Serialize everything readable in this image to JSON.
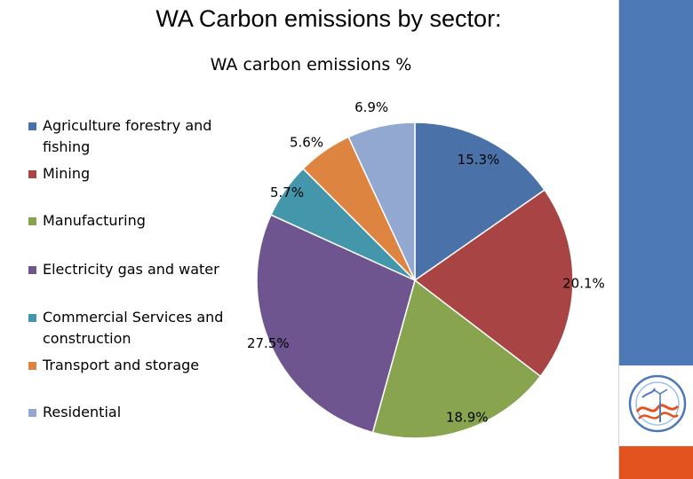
{
  "slide": {
    "title": "WA Carbon emissions by sector:"
  },
  "icons": {
    "logo": "wind-wave-logo-icon"
  },
  "chart_data": {
    "type": "pie",
    "title": "WA carbon emissions %",
    "start_angle_deg": 0,
    "direction": "clockwise",
    "legend_position": "left",
    "categories": [
      "Agriculture forestry and fishing",
      "Mining",
      "Manufacturing",
      "Electricity gas and water",
      "Commercial Services and construction",
      "Transport and storage",
      "Residential"
    ],
    "values": [
      15.3,
      20.1,
      18.9,
      27.5,
      5.7,
      5.6,
      6.9
    ],
    "labels": [
      "15.3%",
      "20.1%",
      "18.9%",
      "27.5%",
      "5.7%",
      "5.6%",
      "6.9%"
    ],
    "colors": [
      "#4a72a8",
      "#a84544",
      "#88a44f",
      "#6e5590",
      "#4496ab",
      "#dd8440",
      "#93a8d1"
    ]
  }
}
